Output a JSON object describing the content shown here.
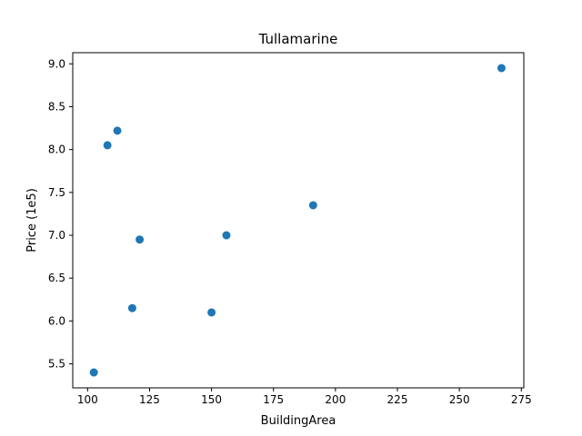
{
  "chart_data": {
    "type": "scatter",
    "title": "Tullamarine",
    "xlabel": "BuildingArea",
    "ylabel": "Price (1e5)",
    "xlim": [
      94,
      276
    ],
    "ylim": [
      5.22,
      9.13
    ],
    "xticks": [
      100,
      125,
      150,
      175,
      200,
      225,
      250,
      275
    ],
    "xtick_labels": [
      "100",
      "125",
      "150",
      "175",
      "200",
      "225",
      "250",
      "275"
    ],
    "yticks": [
      5.5,
      6.0,
      6.5,
      7.0,
      7.5,
      8.0,
      8.5,
      9.0
    ],
    "ytick_labels": [
      "5.5",
      "6.0",
      "6.5",
      "7.0",
      "7.5",
      "8.0",
      "8.5",
      "9.0"
    ],
    "grid": false,
    "legend": "none",
    "marker_color": "#1f77b4",
    "series": [
      {
        "points": [
          {
            "x": 102.5,
            "y": 5.4
          },
          {
            "x": 108,
            "y": 8.05
          },
          {
            "x": 112,
            "y": 8.22
          },
          {
            "x": 118,
            "y": 6.15
          },
          {
            "x": 121,
            "y": 6.95
          },
          {
            "x": 150,
            "y": 6.1
          },
          {
            "x": 156,
            "y": 7.0
          },
          {
            "x": 191,
            "y": 7.35
          },
          {
            "x": 267,
            "y": 8.95
          }
        ]
      }
    ]
  }
}
